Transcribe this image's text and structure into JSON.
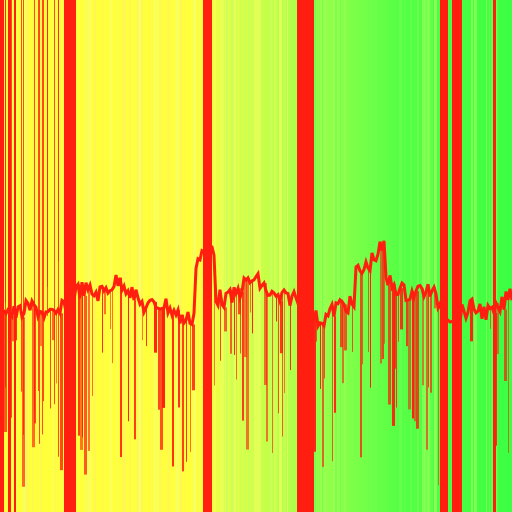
{
  "palette": {
    "yellow": "#ffff3a",
    "yellow_green": "#d8ff4a",
    "lime": "#a8ff4c",
    "green": "#3fff44",
    "red": "#ff1e0f"
  },
  "description_style": "abstract glitch stripes with red waveform"
}
